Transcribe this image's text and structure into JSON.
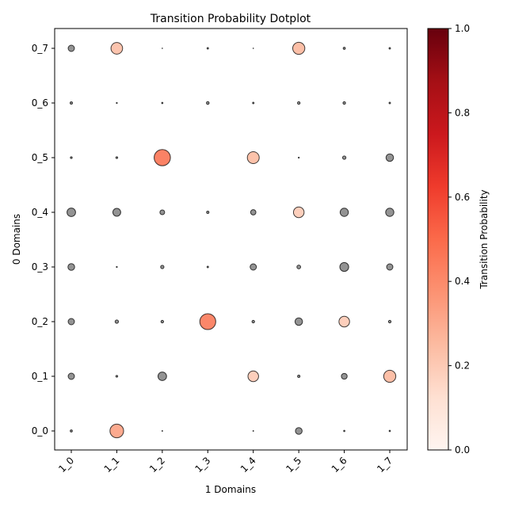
{
  "chart_data": {
    "type": "scatter",
    "title": "Transition Probability Dotplot",
    "xlabel": "1 Domains",
    "ylabel": "0 Domains",
    "x_categories": [
      "1_0",
      "1_1",
      "1_2",
      "1_3",
      "1_4",
      "1_5",
      "1_6",
      "1_7"
    ],
    "y_categories": [
      "0_0",
      "0_1",
      "0_2",
      "0_3",
      "0_4",
      "0_5",
      "0_6",
      "0_7"
    ],
    "colorbar": {
      "label": "Transition Probability",
      "range": [
        0,
        1
      ],
      "ticks": [
        "0.0",
        "0.2",
        "0.4",
        "0.6",
        "0.8",
        "1.0"
      ],
      "colormap": "Reds"
    },
    "highlighted_color": "red-scale",
    "other_color": "#808080",
    "points": [
      {
        "x": "1_0",
        "y": "0_0",
        "p": 0.008,
        "highlight": false
      },
      {
        "x": "1_1",
        "y": "0_0",
        "p": 0.33,
        "highlight": true
      },
      {
        "x": "1_2",
        "y": "0_0",
        "p": 0.001,
        "highlight": false
      },
      {
        "x": "1_4",
        "y": "0_0",
        "p": 0.001,
        "highlight": false
      },
      {
        "x": "1_5",
        "y": "0_0",
        "p": 0.08,
        "highlight": false
      },
      {
        "x": "1_6",
        "y": "0_0",
        "p": 0.003,
        "highlight": false
      },
      {
        "x": "1_7",
        "y": "0_0",
        "p": 0.003,
        "highlight": false
      },
      {
        "x": "1_0",
        "y": "0_1",
        "p": 0.07,
        "highlight": false
      },
      {
        "x": "1_1",
        "y": "0_1",
        "p": 0.006,
        "highlight": false
      },
      {
        "x": "1_2",
        "y": "0_1",
        "p": 0.13,
        "highlight": false
      },
      {
        "x": "1_4",
        "y": "0_1",
        "p": 0.2,
        "highlight": true
      },
      {
        "x": "1_5",
        "y": "0_1",
        "p": 0.01,
        "highlight": false
      },
      {
        "x": "1_6",
        "y": "0_1",
        "p": 0.06,
        "highlight": false
      },
      {
        "x": "1_7",
        "y": "0_1",
        "p": 0.26,
        "highlight": true
      },
      {
        "x": "1_0",
        "y": "0_2",
        "p": 0.07,
        "highlight": false
      },
      {
        "x": "1_1",
        "y": "0_2",
        "p": 0.02,
        "highlight": false
      },
      {
        "x": "1_2",
        "y": "0_2",
        "p": 0.012,
        "highlight": false
      },
      {
        "x": "1_3",
        "y": "0_2",
        "p": 0.45,
        "highlight": true
      },
      {
        "x": "1_4",
        "y": "0_2",
        "p": 0.012,
        "highlight": false
      },
      {
        "x": "1_5",
        "y": "0_2",
        "p": 0.1,
        "highlight": false
      },
      {
        "x": "1_6",
        "y": "0_2",
        "p": 0.2,
        "highlight": true
      },
      {
        "x": "1_7",
        "y": "0_2",
        "p": 0.012,
        "highlight": false
      },
      {
        "x": "1_0",
        "y": "0_3",
        "p": 0.08,
        "highlight": false
      },
      {
        "x": "1_1",
        "y": "0_3",
        "p": 0.002,
        "highlight": false
      },
      {
        "x": "1_2",
        "y": "0_3",
        "p": 0.02,
        "highlight": false
      },
      {
        "x": "1_3",
        "y": "0_3",
        "p": 0.004,
        "highlight": false
      },
      {
        "x": "1_4",
        "y": "0_3",
        "p": 0.07,
        "highlight": false
      },
      {
        "x": "1_5",
        "y": "0_3",
        "p": 0.025,
        "highlight": false
      },
      {
        "x": "1_6",
        "y": "0_3",
        "p": 0.14,
        "highlight": false
      },
      {
        "x": "1_7",
        "y": "0_3",
        "p": 0.07,
        "highlight": false
      },
      {
        "x": "1_0",
        "y": "0_4",
        "p": 0.13,
        "highlight": false
      },
      {
        "x": "1_1",
        "y": "0_4",
        "p": 0.11,
        "highlight": false
      },
      {
        "x": "1_2",
        "y": "0_4",
        "p": 0.04,
        "highlight": false
      },
      {
        "x": "1_3",
        "y": "0_4",
        "p": 0.01,
        "highlight": false
      },
      {
        "x": "1_4",
        "y": "0_4",
        "p": 0.05,
        "highlight": false
      },
      {
        "x": "1_5",
        "y": "0_4",
        "p": 0.2,
        "highlight": true
      },
      {
        "x": "1_6",
        "y": "0_4",
        "p": 0.12,
        "highlight": false
      },
      {
        "x": "1_7",
        "y": "0_4",
        "p": 0.12,
        "highlight": false
      },
      {
        "x": "1_0",
        "y": "0_5",
        "p": 0.006,
        "highlight": false
      },
      {
        "x": "1_1",
        "y": "0_5",
        "p": 0.006,
        "highlight": false
      },
      {
        "x": "1_2",
        "y": "0_5",
        "p": 0.47,
        "highlight": true
      },
      {
        "x": "1_4",
        "y": "0_5",
        "p": 0.25,
        "highlight": true
      },
      {
        "x": "1_5",
        "y": "0_5",
        "p": 0.002,
        "highlight": false
      },
      {
        "x": "1_6",
        "y": "0_5",
        "p": 0.02,
        "highlight": false
      },
      {
        "x": "1_7",
        "y": "0_5",
        "p": 0.1,
        "highlight": false
      },
      {
        "x": "1_0",
        "y": "0_6",
        "p": 0.01,
        "highlight": false
      },
      {
        "x": "1_1",
        "y": "0_6",
        "p": 0.002,
        "highlight": false
      },
      {
        "x": "1_2",
        "y": "0_6",
        "p": 0.003,
        "highlight": false
      },
      {
        "x": "1_3",
        "y": "0_6",
        "p": 0.013,
        "highlight": false
      },
      {
        "x": "1_4",
        "y": "0_6",
        "p": 0.004,
        "highlight": false
      },
      {
        "x": "1_5",
        "y": "0_6",
        "p": 0.012,
        "highlight": false
      },
      {
        "x": "1_6",
        "y": "0_6",
        "p": 0.012,
        "highlight": false
      },
      {
        "x": "1_7",
        "y": "0_6",
        "p": 0.004,
        "highlight": false
      },
      {
        "x": "1_0",
        "y": "0_7",
        "p": 0.07,
        "highlight": false
      },
      {
        "x": "1_1",
        "y": "0_7",
        "p": 0.24,
        "highlight": true
      },
      {
        "x": "1_2",
        "y": "0_7",
        "p": 0.0005,
        "highlight": false
      },
      {
        "x": "1_3",
        "y": "0_7",
        "p": 0.004,
        "highlight": false
      },
      {
        "x": "1_4",
        "y": "0_7",
        "p": 0.0005,
        "highlight": false
      },
      {
        "x": "1_5",
        "y": "0_7",
        "p": 0.26,
        "highlight": true
      },
      {
        "x": "1_6",
        "y": "0_7",
        "p": 0.008,
        "highlight": false
      },
      {
        "x": "1_7",
        "y": "0_7",
        "p": 0.004,
        "highlight": false
      }
    ]
  }
}
